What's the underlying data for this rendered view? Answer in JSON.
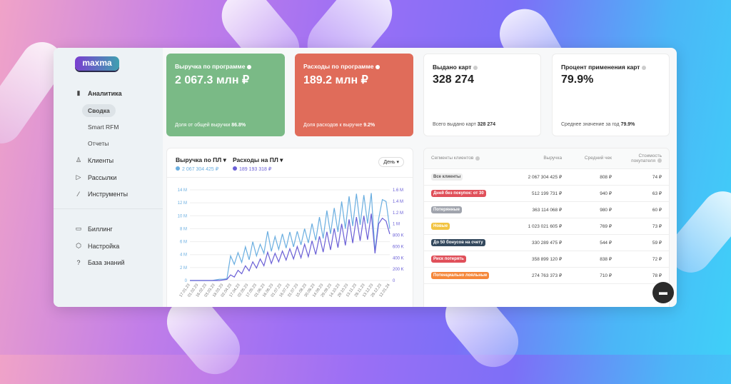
{
  "logo": "maxma",
  "sidebar": {
    "items": [
      {
        "label": "Аналитика",
        "icon": "bar-chart-icon"
      },
      {
        "label": "Клиенты",
        "icon": "user-icon"
      },
      {
        "label": "Рассылки",
        "icon": "send-icon"
      },
      {
        "label": "Инструменты",
        "icon": "magic-wand-icon"
      },
      {
        "label": "Биллинг",
        "icon": "card-icon"
      },
      {
        "label": "Настройка",
        "icon": "gear-icon"
      },
      {
        "label": "База знаний",
        "icon": "help-icon"
      }
    ],
    "sub": [
      "Сводка",
      "Smart RFM",
      "Отчеты"
    ]
  },
  "cards": [
    {
      "title": "Выручка по программе",
      "value": "2 067.3 млн ₽",
      "foot": "Доля от общей выручки",
      "foot_val": "86.8%"
    },
    {
      "title": "Расходы по программе",
      "value": "189.2 млн ₽",
      "foot": "Доля расходов к выручке",
      "foot_val": "9.2%"
    },
    {
      "title": "Выдано карт",
      "value": "328 274",
      "foot": "Всего выдано карт",
      "foot_val": "328 274"
    },
    {
      "title": "Процент применения карт",
      "value": "79.9%",
      "foot": "Среднее значение за год",
      "foot_val": "79.9%"
    }
  ],
  "chart": {
    "legend1": "Выручка по ПЛ ▾",
    "legend1_val": "2 067 304 425 ₽",
    "legend2": "Расходы на ПЛ ▾",
    "legend2_val": "189 193 318 ₽",
    "period": "День",
    "colors": {
      "revenue": "#6aaee0",
      "expenses": "#6a5fd6"
    }
  },
  "chart_data": {
    "type": "line",
    "x_ticks": [
      "17.01.23",
      "01.02.23",
      "16.02.23",
      "03.03.23",
      "18.03.23",
      "02.04.23",
      "17.04.23",
      "02.05.23",
      "17.05.23",
      "01.06.23",
      "16.06.23",
      "01.07.23",
      "16.07.23",
      "31.07.23",
      "15.08.23",
      "30.08.23",
      "14.09.23",
      "29.09.23",
      "14.10.23",
      "29.10.23",
      "13.11.23",
      "28.11.23",
      "13.12.23",
      "28.12.23",
      "12.01.24"
    ],
    "y_left": {
      "ticks": [
        "0",
        "2 M",
        "4 M",
        "6 M",
        "8 M",
        "10 M",
        "12 M",
        "14 M"
      ],
      "range": [
        0,
        14
      ]
    },
    "y_right": {
      "ticks": [
        "0",
        "200 K",
        "400 K",
        "600 K",
        "800 K",
        "1 M",
        "1.2 M",
        "1.4 M",
        "1.6 M"
      ],
      "range": [
        0,
        1600
      ]
    },
    "series": [
      {
        "name": "Выручка по ПЛ (M)",
        "axis": "left",
        "values": [
          0,
          0,
          0,
          0,
          0,
          0,
          0,
          0.1,
          0.2,
          0.2,
          0.3,
          3.8,
          2.5,
          4.3,
          2.8,
          5.2,
          3.2,
          6.0,
          3.8,
          5.6,
          4.2,
          7.6,
          4.5,
          6.8,
          4.8,
          7.2,
          5.0,
          7.5,
          5.2,
          7.6,
          5.5,
          8.0,
          5.8,
          8.8,
          6.2,
          9.8,
          6.5,
          10.8,
          7.2,
          11.2,
          7.5,
          12.2,
          8.0,
          13.0,
          8.4,
          13.4,
          8.6,
          13.2,
          8.8,
          13.5,
          4.5,
          9.5,
          12.5,
          12.2,
          8.0
        ]
      },
      {
        "name": "Расходы на ПЛ (K)",
        "axis": "right",
        "values": [
          0,
          0,
          0,
          0,
          0,
          0,
          0,
          0,
          0,
          10,
          20,
          100,
          60,
          180,
          120,
          260,
          170,
          330,
          220,
          380,
          260,
          500,
          300,
          480,
          330,
          520,
          360,
          560,
          380,
          600,
          400,
          640,
          420,
          700,
          460,
          780,
          500,
          860,
          540,
          920,
          580,
          1000,
          620,
          1080,
          660,
          1120,
          700,
          1140,
          720,
          1180,
          480,
          1000,
          1100,
          1050,
          820
        ]
      }
    ]
  },
  "table": {
    "headers": [
      "Сегменты клиентов",
      "Выручка",
      "Средний чек",
      "Стоимость покупателя"
    ],
    "rows": [
      {
        "seg": "Все клиенты",
        "color": "#eeeeee",
        "rev": "2 067 304 425 ₽",
        "avg": "808 ₽",
        "cost": "74 ₽"
      },
      {
        "seg": "Дней без покупок: от 30",
        "color": "#e0505a",
        "rev": "512 199 731 ₽",
        "avg": "940 ₽",
        "cost": "63 ₽"
      },
      {
        "seg": "Потерянные",
        "color": "#a0a4ad",
        "rev": "363 114 068 ₽",
        "avg": "980 ₽",
        "cost": "60 ₽"
      },
      {
        "seg": "Новые",
        "color": "#f2c443",
        "rev": "1 023 021 605 ₽",
        "avg": "769 ₽",
        "cost": "73 ₽"
      },
      {
        "seg": "До 50 бонусов на счету",
        "color": "#34495e",
        "rev": "330 289 475 ₽",
        "avg": "544 ₽",
        "cost": "59 ₽"
      },
      {
        "seg": "Риск потерять",
        "color": "#e0505a",
        "rev": "358 899 120 ₽",
        "avg": "838 ₽",
        "cost": "72 ₽"
      },
      {
        "seg": "Потенциально лояльные",
        "color": "#f5873a",
        "rev": "274 763 373 ₽",
        "avg": "710 ₽",
        "cost": "78 ₽"
      }
    ]
  }
}
